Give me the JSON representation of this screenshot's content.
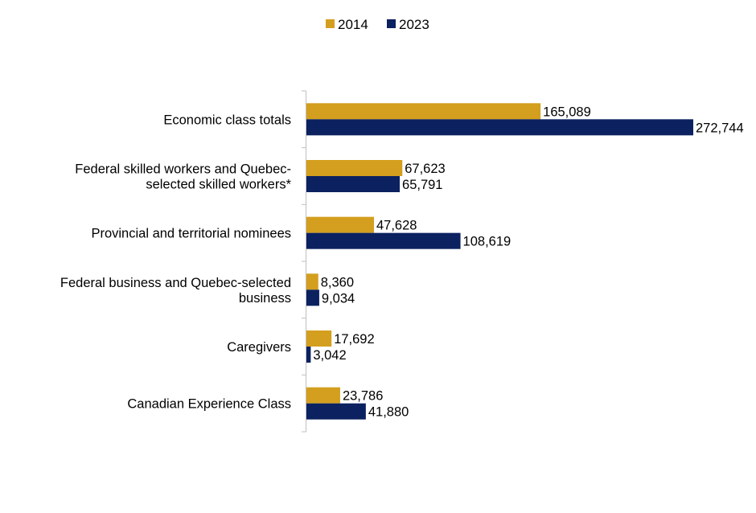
{
  "chart_data": {
    "type": "bar",
    "orientation": "horizontal",
    "categories": [
      [
        "Economic class totals"
      ],
      [
        "Federal skilled workers and Quebec-",
        "selected skilled workers*"
      ],
      [
        "Provincial and territorial nominees"
      ],
      [
        "Federal business and Quebec-selected",
        "business"
      ],
      [
        "Caregivers"
      ],
      [
        "Canadian Experience Class"
      ]
    ],
    "series": [
      {
        "name": "2014",
        "color": "#D49F1E",
        "values": [
          165089,
          67623,
          47628,
          8360,
          17692,
          23786
        ],
        "labels": [
          "165,089",
          "67,623",
          "47,628",
          "8,360",
          "17,692",
          "23,786"
        ]
      },
      {
        "name": "2023",
        "color": "#0B2160",
        "values": [
          272744,
          65791,
          108619,
          9034,
          3042,
          41880
        ],
        "labels": [
          "272,744",
          "65,791",
          "108,619",
          "9,034",
          "3,042",
          "41,880"
        ]
      }
    ],
    "xlim": [
      0,
      272744
    ],
    "legend_position": "top-center",
    "grid": false
  }
}
